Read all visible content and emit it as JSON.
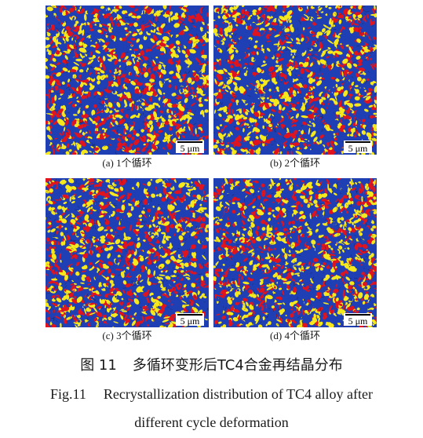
{
  "figure": {
    "panels": [
      {
        "label": "(a) 1个循环",
        "scale": "5 μm",
        "seed": 11
      },
      {
        "label": "(b) 2个循环",
        "scale": "5 μm",
        "seed": 23
      },
      {
        "label": "(c) 3个循环",
        "scale": "5 μm",
        "seed": 37
      },
      {
        "label": "(d) 4个循环",
        "scale": "5 μm",
        "seed": 53
      }
    ],
    "phase_colors": {
      "recrystallized": "#1f3fb4",
      "substructured": "#f5e81c",
      "deformed": "#e0141e"
    },
    "caption_cn": {
      "number": "图 11",
      "text": "多循环变形后TC4合金再结晶分布"
    },
    "caption_en": {
      "number": "Fig.11",
      "line1": "Recrystallization distribution of TC4 alloy after",
      "line2": "different cycle deformation"
    }
  }
}
